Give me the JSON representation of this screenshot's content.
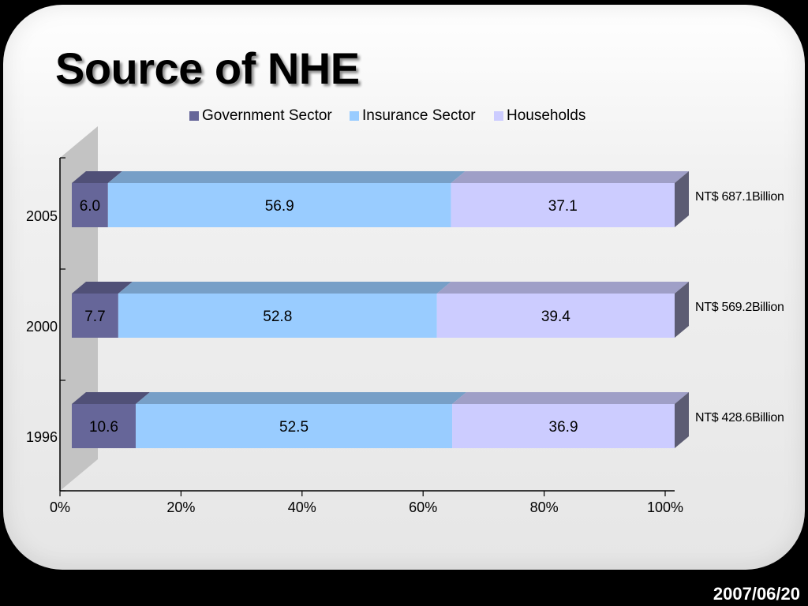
{
  "slide": {
    "title": "Source of NHE",
    "date": "2007/06/20"
  },
  "chart_data": {
    "type": "bar",
    "orientation": "horizontal",
    "stacked": "percent",
    "categories": [
      "2005",
      "2000",
      "1996"
    ],
    "series": [
      {
        "name": "Government Sector",
        "values": [
          6.0,
          7.7,
          10.6
        ],
        "color": "#666699"
      },
      {
        "name": "Insurance Sector",
        "values": [
          56.9,
          52.8,
          52.5
        ],
        "color": "#99ccff"
      },
      {
        "name": "Households",
        "values": [
          37.1,
          39.4,
          36.9
        ],
        "color": "#ccccff"
      }
    ],
    "value_labels": [
      [
        "6.0",
        "7.7",
        "10.6"
      ],
      [
        "56.9",
        "52.8",
        "52.5"
      ],
      [
        "37.1",
        "39.4",
        "36.9"
      ]
    ],
    "totals": [
      "NT$ 687.1Billion",
      "NT$ 569.2Billion",
      "NT$ 428.6Billion"
    ],
    "x_ticks": [
      {
        "value": 0,
        "label": "0%"
      },
      {
        "value": 20,
        "label": "20%"
      },
      {
        "value": 40,
        "label": "40%"
      },
      {
        "value": 60,
        "label": "60%"
      },
      {
        "value": 80,
        "label": "80%"
      },
      {
        "value": 100,
        "label": "100%"
      }
    ],
    "xlim": [
      0,
      100
    ],
    "legend_position": "top",
    "grid": false
  }
}
